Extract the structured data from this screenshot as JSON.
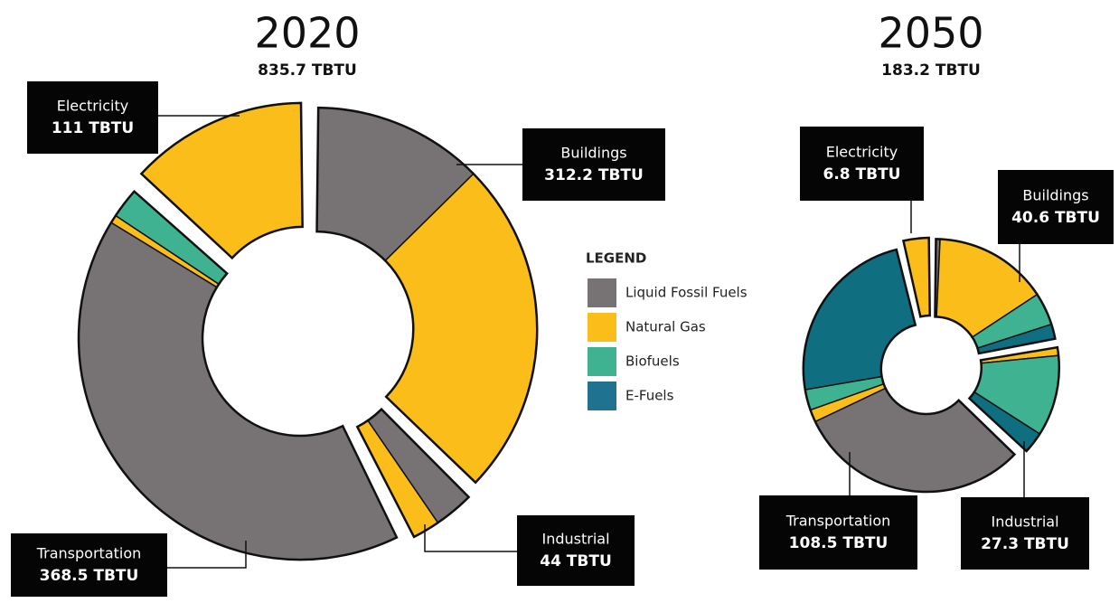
{
  "chart_data": [
    {
      "type": "donut",
      "title": "2020",
      "subtitle": "835.7 TBTU",
      "categories": [
        "Buildings",
        "Industrial",
        "Transportation",
        "Electricity"
      ],
      "values": [
        312.2,
        44,
        368.5,
        111
      ],
      "value_labels": [
        "312.2 TBTU",
        "44 TBTU",
        "368.5 TBTU",
        "111 TBTU"
      ],
      "series": [
        {
          "name": "Liquid Fossil Fuels",
          "color": "#777274",
          "values": [
            105,
            26,
            345,
            0
          ]
        },
        {
          "name": "Natural Gas",
          "color": "#fbbd1a",
          "values": [
            207.2,
            18,
            5,
            111
          ]
        },
        {
          "name": "Biofuels",
          "color": "#3fb391",
          "values": [
            0,
            0,
            18.5,
            0
          ]
        },
        {
          "name": "E-Fuels",
          "color": "#1f7390",
          "values": [
            0,
            0,
            0,
            0
          ]
        }
      ]
    },
    {
      "type": "donut",
      "title": "2050",
      "subtitle": "183.2 TBTU",
      "categories": [
        "Buildings",
        "Industrial",
        "Transportation",
        "Electricity"
      ],
      "values": [
        40.6,
        27.3,
        108.5,
        6.8
      ],
      "value_labels": [
        "40.6 TBTU",
        "27.3 TBTU",
        "108.5 TBTU",
        "6.8 TBTU"
      ],
      "series": [
        {
          "name": "Liquid Fossil Fuels",
          "color": "#777274",
          "values": [
            1,
            0,
            56.6,
            0
          ]
        },
        {
          "name": "Natural Gas",
          "color": "#fbbd1a",
          "values": [
            28,
            2,
            3,
            6.8
          ]
        },
        {
          "name": "Biofuels",
          "color": "#3fb391",
          "values": [
            8,
            20,
            5,
            0
          ]
        },
        {
          "name": "E-Fuels",
          "color": "#0f6e80",
          "values": [
            3.6,
            5.3,
            43.9,
            0
          ]
        }
      ]
    }
  ],
  "legend": {
    "title": "LEGEND"
  }
}
